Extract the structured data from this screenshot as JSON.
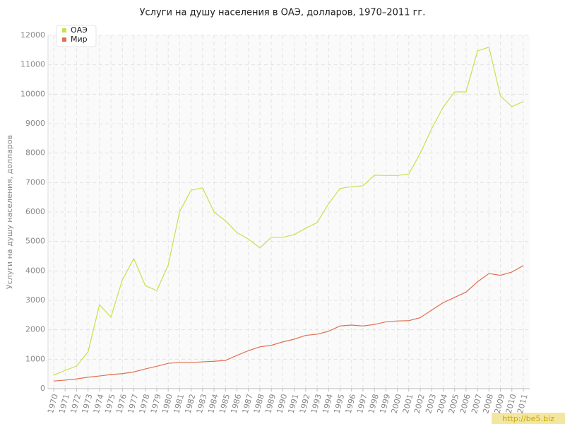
{
  "chart_data": {
    "type": "line",
    "title": "Услуги на душу населения в ОАЭ, долларов, 1970–2011 гг.",
    "y_label": "Услуги на душу населения, долларов",
    "watermark": "http://be5.biz",
    "x": [
      1970,
      1971,
      1972,
      1973,
      1974,
      1975,
      1976,
      1977,
      1978,
      1979,
      1980,
      1981,
      1982,
      1983,
      1984,
      1985,
      1986,
      1987,
      1988,
      1989,
      1990,
      1991,
      1992,
      1993,
      1994,
      1995,
      1996,
      1997,
      1998,
      1999,
      2000,
      2001,
      2002,
      2003,
      2004,
      2005,
      2006,
      2007,
      2008,
      2009,
      2010,
      2011
    ],
    "xlim": [
      1970,
      2011
    ],
    "xticks": [
      1970,
      1971,
      1972,
      1973,
      1974,
      1975,
      1976,
      1977,
      1978,
      1979,
      1980,
      1981,
      1982,
      1983,
      1984,
      1985,
      1986,
      1987,
      1988,
      1989,
      1990,
      1991,
      1992,
      1993,
      1994,
      1995,
      1996,
      1997,
      1998,
      1999,
      2000,
      2001,
      2002,
      2003,
      2004,
      2005,
      2006,
      2007,
      2008,
      2009,
      2010,
      2011
    ],
    "ylim": [
      0,
      12000
    ],
    "yticks": [
      0,
      1000,
      2000,
      3000,
      4000,
      5000,
      6000,
      7000,
      8000,
      9000,
      10000,
      11000,
      12000
    ],
    "grid": true,
    "legend": "top-left",
    "series": [
      {
        "name": "ОАЭ",
        "color": "#c8e04c",
        "values": [
          460,
          620,
          770,
          1250,
          2850,
          2430,
          3700,
          4420,
          3500,
          3330,
          4200,
          6020,
          6740,
          6820,
          6000,
          5700,
          5300,
          5080,
          4780,
          5140,
          5140,
          5230,
          5450,
          5640,
          6280,
          6800,
          6860,
          6890,
          7250,
          7240,
          7240,
          7290,
          7990,
          8830,
          9560,
          10080,
          10080,
          11470,
          11600,
          9940,
          9580,
          9750
        ]
      },
      {
        "name": "Мир",
        "color": "#e07050",
        "values": [
          260,
          290,
          330,
          390,
          430,
          480,
          510,
          570,
          670,
          760,
          860,
          890,
          890,
          910,
          930,
          960,
          1130,
          1290,
          1420,
          1470,
          1590,
          1680,
          1810,
          1850,
          1950,
          2130,
          2160,
          2130,
          2180,
          2270,
          2300,
          2310,
          2410,
          2670,
          2920,
          3100,
          3280,
          3630,
          3910,
          3850,
          3960,
          4180
        ]
      }
    ]
  }
}
